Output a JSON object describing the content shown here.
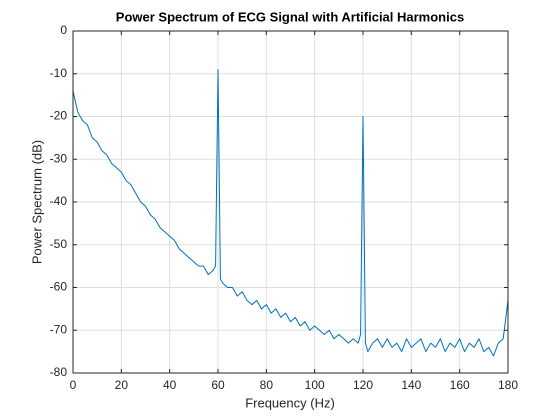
{
  "chart_data": {
    "type": "line",
    "title": "Power Spectrum of ECG Signal with Artificial Harmonics",
    "xlabel": "Frequency (Hz)",
    "ylabel": "Power Spectrum (dB)",
    "x": [
      0,
      2,
      4,
      6,
      8,
      10,
      12,
      14,
      16,
      18,
      20,
      22,
      24,
      26,
      28,
      30,
      32,
      34,
      36,
      38,
      40,
      42,
      44,
      46,
      48,
      50,
      52,
      54,
      56,
      58,
      59,
      60,
      61,
      62,
      64,
      66,
      68,
      70,
      72,
      74,
      76,
      78,
      80,
      82,
      84,
      86,
      88,
      90,
      92,
      94,
      96,
      98,
      100,
      102,
      104,
      106,
      108,
      110,
      112,
      114,
      116,
      118,
      119,
      120,
      121,
      122,
      124,
      126,
      128,
      130,
      132,
      134,
      136,
      138,
      140,
      142,
      144,
      146,
      148,
      150,
      152,
      154,
      156,
      158,
      160,
      162,
      164,
      166,
      168,
      170,
      172,
      174,
      176,
      178,
      180
    ],
    "series": [
      {
        "name": "Power Spectrum",
        "color": "#0072bd",
        "values": [
          -14,
          -19,
          -21,
          -22,
          -25,
          -26,
          -28,
          -29,
          -31,
          -32,
          -33,
          -35,
          -36,
          -38,
          -40,
          -41,
          -43,
          -44,
          -46,
          -47,
          -48,
          -49,
          -51,
          -52,
          -53,
          -54,
          -55,
          -55,
          -57,
          -56,
          -55,
          -9,
          -58,
          -59,
          -60,
          -60,
          -62,
          -61,
          -63,
          -64,
          -63,
          -65,
          -64,
          -66,
          -65,
          -67,
          -66,
          -68,
          -67,
          -69,
          -68,
          -70,
          -69,
          -70,
          -71,
          -70,
          -72,
          -71,
          -72,
          -73,
          -72,
          -73,
          -71,
          -20,
          -73,
          -75,
          -73,
          -72,
          -74,
          -72,
          -74,
          -73,
          -75,
          -72,
          -74,
          -73,
          -72,
          -75,
          -73,
          -74,
          -72,
          -75,
          -73,
          -74,
          -72,
          -75,
          -73,
          -74,
          -72,
          -75,
          -74,
          -76,
          -73,
          -72,
          -63
        ]
      }
    ],
    "xlim": [
      0,
      180
    ],
    "xticks": [
      0,
      20,
      40,
      60,
      80,
      100,
      120,
      140,
      160,
      180
    ],
    "ylim": [
      -80,
      0
    ],
    "yticks": [
      -80,
      -70,
      -60,
      -50,
      -40,
      -30,
      -20,
      -10,
      0
    ],
    "grid": true
  }
}
